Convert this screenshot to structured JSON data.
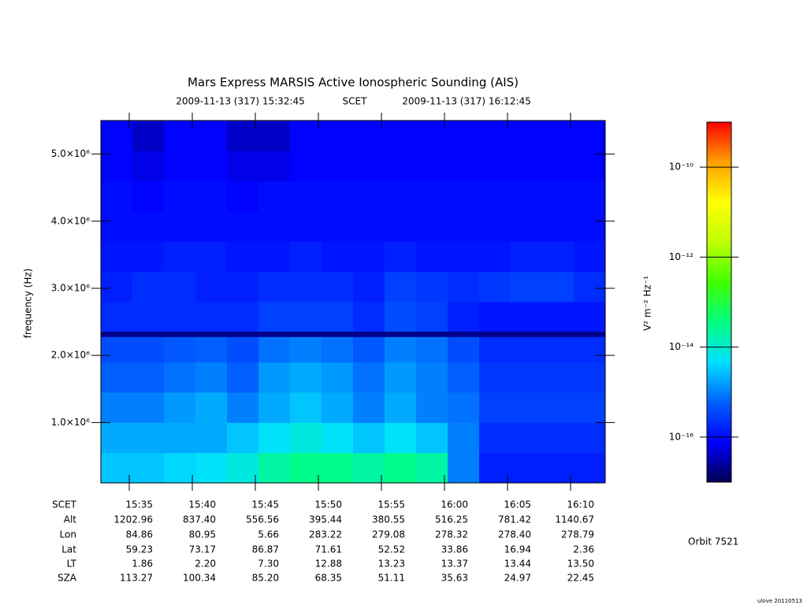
{
  "chart_data": {
    "type": "heatmap",
    "title": "Mars Express MARSIS Active Ionospheric Sounding (AIS)",
    "start_label": "2009-11-13 (317) 15:32:45",
    "time_system": "SCET",
    "end_label": "2009-11-13 (317) 16:12:45",
    "ylabel": "frequency (Hz)",
    "xlim": [
      "15:32:45",
      "16:12:45"
    ],
    "xticks": [
      "15:35",
      "15:40",
      "15:45",
      "15:50",
      "15:55",
      "16:00",
      "16:05",
      "16:10"
    ],
    "ylim": [
      100000,
      5500000
    ],
    "yticks": [
      {
        "value": 1000000,
        "label": "1.0×10⁶"
      },
      {
        "value": 2000000,
        "label": "2.0×10⁶"
      },
      {
        "value": 3000000,
        "label": "3.0×10⁶"
      },
      {
        "value": 4000000,
        "label": "4.0×10⁶"
      },
      {
        "value": 5000000,
        "label": "5.0×10⁶"
      }
    ],
    "xbins": [
      "15:32:45",
      "15:35:15",
      "15:37:45",
      "15:40:15",
      "15:42:45",
      "15:45:15",
      "15:47:45",
      "15:50:15",
      "15:52:45",
      "15:55:15",
      "15:57:45",
      "16:00:15",
      "16:02:45",
      "16:05:15",
      "16:07:45",
      "16:10:15",
      "16:12:45"
    ],
    "ybins": [
      100000,
      550000,
      1000000,
      1450000,
      1900000,
      2280000,
      2360000,
      2800000,
      3250000,
      3700000,
      4150000,
      4600000,
      5050000,
      5500000
    ],
    "z": [
      [
        3e-15,
        3e-15,
        4e-15,
        5e-15,
        8e-15,
        2e-14,
        3e-14,
        3e-14,
        2e-14,
        3e-14,
        2e-14,
        1e-15,
        1.5e-16,
        1.5e-16,
        1.5e-16,
        1.5e-16
      ],
      [
        2e-15,
        2e-15,
        2e-15,
        2e-15,
        3e-15,
        5e-15,
        8e-15,
        5e-15,
        3e-15,
        5e-15,
        3e-15,
        1e-15,
        2e-16,
        2e-16,
        2e-16,
        2e-16
      ],
      [
        1e-15,
        1e-15,
        1.5e-15,
        2e-15,
        1e-15,
        2e-15,
        3e-15,
        2e-15,
        1e-15,
        2e-15,
        1e-15,
        8e-16,
        3e-16,
        3e-16,
        3e-16,
        3e-16
      ],
      [
        6e-16,
        6e-16,
        8e-16,
        1e-15,
        6e-16,
        1.5e-15,
        2e-15,
        1.5e-15,
        8e-16,
        1.5e-15,
        1e-15,
        6e-16,
        2.5e-16,
        2.5e-16,
        2.5e-16,
        2.5e-16
      ],
      [
        4e-16,
        4e-16,
        5e-16,
        6e-16,
        4e-16,
        8e-16,
        1e-15,
        8e-16,
        5e-16,
        1e-15,
        8e-16,
        4e-16,
        2e-16,
        2e-16,
        2e-16,
        2e-16
      ],
      [
        2e-17,
        2e-17,
        2e-17,
        2e-17,
        2e-17,
        2e-17,
        2e-17,
        2e-17,
        2e-17,
        2e-17,
        2e-17,
        2e-17,
        2e-17,
        2e-17,
        2e-17,
        2e-17
      ],
      [
        2e-16,
        2e-16,
        2e-16,
        2e-16,
        2e-16,
        3e-16,
        3e-16,
        3e-16,
        2e-16,
        4e-16,
        3e-16,
        1.5e-16,
        1.2e-16,
        1.2e-16,
        1.2e-16,
        1.2e-16
      ],
      [
        1.5e-16,
        2e-16,
        2e-16,
        1.5e-16,
        1.5e-16,
        2e-16,
        2e-16,
        2e-16,
        1.5e-16,
        3e-16,
        2.5e-16,
        2e-16,
        2.5e-16,
        3e-16,
        3e-16,
        2e-16
      ],
      [
        1.2e-16,
        1.2e-16,
        1.5e-16,
        1.5e-16,
        1.2e-16,
        1.2e-16,
        1.5e-16,
        1.2e-16,
        1.2e-16,
        1.5e-16,
        1.2e-16,
        1.2e-16,
        1.2e-16,
        1.5e-16,
        1.5e-16,
        1.2e-16
      ],
      [
        1e-16,
        1e-16,
        1e-16,
        1e-16,
        1e-16,
        1e-16,
        1e-16,
        1e-16,
        1e-16,
        1e-16,
        1e-16,
        1e-16,
        1e-16,
        1e-16,
        1e-16,
        1e-16
      ],
      [
        1e-16,
        8e-17,
        1e-16,
        1e-16,
        8e-17,
        1e-16,
        1e-16,
        1e-16,
        1e-16,
        1e-16,
        1e-16,
        1e-16,
        1e-16,
        1e-16,
        1e-16,
        1e-16
      ],
      [
        8e-17,
        6e-17,
        8e-17,
        8e-17,
        6e-17,
        6e-17,
        8e-17,
        8e-17,
        8e-17,
        8e-17,
        8e-17,
        8e-17,
        8e-17,
        8e-17,
        8e-17,
        8e-17
      ],
      [
        8e-17,
        4e-17,
        8e-17,
        8e-17,
        4e-17,
        4e-17,
        8e-17,
        8e-17,
        8e-17,
        8e-17,
        8e-17,
        8e-17,
        8e-17,
        8e-17,
        8e-17,
        8e-17
      ]
    ],
    "colorbar": {
      "label": "V² m⁻² Hz⁻¹",
      "log": true,
      "lim": [
        1e-17,
        1e-09
      ],
      "ticks": [
        {
          "value": 1e-16,
          "label": "10⁻¹⁶"
        },
        {
          "value": 1e-14,
          "label": "10⁻¹⁴"
        },
        {
          "value": 1e-12,
          "label": "10⁻¹²"
        },
        {
          "value": 1e-10,
          "label": "10⁻¹⁰"
        }
      ],
      "colors": [
        "#000050",
        "#0000ff",
        "#0060ff",
        "#00e0ff",
        "#00ff80",
        "#40ff00",
        "#c0ff00",
        "#ffff00",
        "#ffa000",
        "#ff0000"
      ]
    }
  },
  "ephemeris": {
    "header": "SCET",
    "rows": [
      {
        "label": "Alt",
        "values": [
          "1202.96",
          "837.40",
          "556.56",
          "395.44",
          "380.55",
          "516.25",
          "781.42",
          "1140.67"
        ]
      },
      {
        "label": "Lon",
        "values": [
          "84.86",
          "80.95",
          "5.66",
          "283.22",
          "279.08",
          "278.32",
          "278.40",
          "278.79"
        ]
      },
      {
        "label": "Lat",
        "values": [
          "59.23",
          "73.17",
          "86.87",
          "71.61",
          "52.52",
          "33.86",
          "16.94",
          "2.36"
        ]
      },
      {
        "label": "LT",
        "values": [
          "1.86",
          "2.20",
          "7.30",
          "12.88",
          "13.23",
          "13.37",
          "13.44",
          "13.50"
        ]
      },
      {
        "label": "SZA",
        "values": [
          "113.27",
          "100.34",
          "85.20",
          "68.35",
          "51.11",
          "35.63",
          "24.97",
          "22.45"
        ]
      }
    ]
  },
  "orbit": "Orbit 7521",
  "footer": "ulove 20110513"
}
